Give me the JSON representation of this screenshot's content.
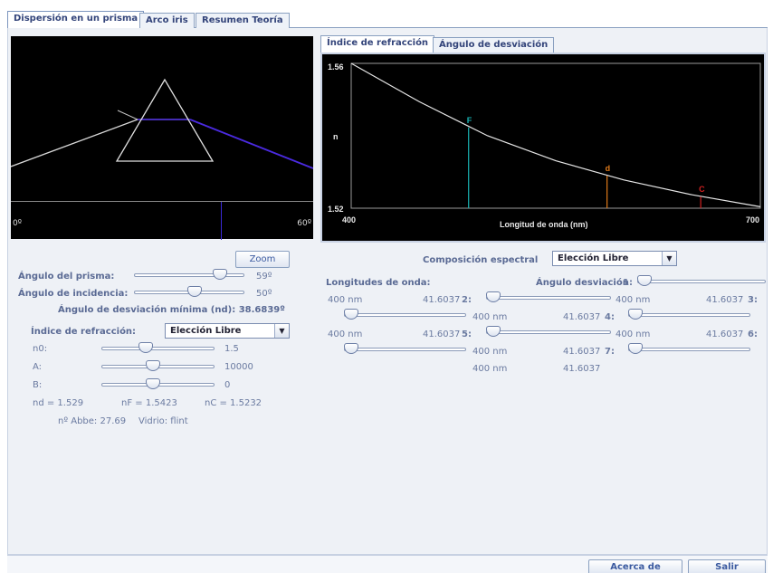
{
  "tabs": [
    "Dispersión en un prisma",
    "Arco iris",
    "Resumen Teoría"
  ],
  "subtabs": [
    "Índice de refracción",
    "Ángulo de desviación"
  ],
  "prism": {
    "scale_left": "0º",
    "scale_right": "60º"
  },
  "chart": {
    "y_top": "1.56",
    "y_bottom": "1.52",
    "y_label": "n",
    "x_left": "400",
    "x_right": "700",
    "x_label": "Longitud de onda (nm)",
    "marker_f": "F",
    "marker_d": "d",
    "marker_c": "C"
  },
  "chart_data": {
    "type": "line",
    "title": "",
    "xlabel": "Longitud de onda (nm)",
    "ylabel": "n",
    "xlim": [
      400,
      700
    ],
    "ylim": [
      1.52,
      1.56
    ],
    "series": [
      {
        "name": "",
        "x": [
          400,
          450,
          500,
          550,
          600,
          650,
          700
        ],
        "y": [
          1.5625,
          1.5494,
          1.54,
          1.5331,
          1.5278,
          1.5237,
          1.5204
        ]
      }
    ],
    "annotations": [
      {
        "label": "F",
        "x": 486.1,
        "y": 1.5423,
        "color": "#19b4b4"
      },
      {
        "label": "d",
        "x": 587.6,
        "y": 1.529,
        "color": "#e07a1a"
      },
      {
        "label": "C",
        "x": 656.3,
        "y": 1.5232,
        "color": "#d02020"
      }
    ]
  },
  "controls": {
    "zoom_label": "Zoom",
    "prism_angle_label": "Ángulo del prisma:",
    "prism_angle_value": "59º",
    "prism_angle_level": 0.82,
    "incidence_label": "Ángulo de incidencia:",
    "incidence_value": "50º",
    "incidence_level": 0.56,
    "min_dev_text": "Ángulo de desviación mínima (nd): 38.6839º",
    "refr_index_label": "Índice de refracción:",
    "refr_select": "Elección Libre",
    "n0_label": "n0:",
    "n0_value": "1.5",
    "n0_level": 0.38,
    "a_label": "A:",
    "a_value": "10000",
    "a_level": 0.45,
    "b_label": "B:",
    "b_value": "0",
    "b_level": 0.45,
    "nd_text": "nd = 1.529",
    "nf_text": "nF = 1.5423",
    "nc_text": "nC = 1.5232",
    "abbe_text": "nº Abbe: 27.69",
    "glass_text": "Vidrio: flint"
  },
  "spectral": {
    "comp_label": "Composición espectral",
    "comp_select": "Elección Libre",
    "wavelengths_label": "Longitudes de onda:",
    "dev_label": "Ángulo desviación",
    "entries": [
      {
        "n": "1:",
        "nm": "400 nm",
        "ang": "41.6037",
        "level": 0.0
      },
      {
        "n": "2:",
        "nm": "400 nm",
        "ang": "41.6037",
        "level": 0.0
      },
      {
        "n": "3:",
        "nm": "400 nm",
        "ang": "41.6037",
        "level": 0.0
      },
      {
        "n": "4:",
        "nm": "400 nm",
        "ang": "41.6037",
        "level": 0.0
      },
      {
        "n": "5:",
        "nm": "400 nm",
        "ang": "41.6037",
        "level": 0.0
      },
      {
        "n": "6:",
        "nm": "400 nm",
        "ang": "41.6037",
        "level": 0.0
      },
      {
        "n": "7:",
        "nm": "400 nm",
        "ang": "41.6037",
        "level": 0.0
      }
    ]
  },
  "footer": {
    "about": "Acerca de",
    "exit": "Salir"
  }
}
